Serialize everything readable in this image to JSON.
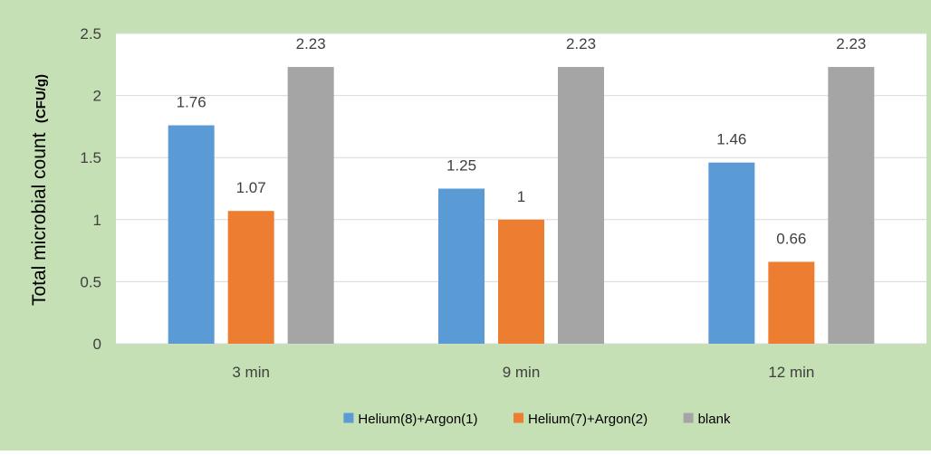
{
  "chart_data": {
    "type": "bar",
    "ylabel": "Total microbial count",
    "ylabel_unit": "(CFU/g)",
    "categories": [
      "3 min",
      "9 min",
      "12 min"
    ],
    "ylim": [
      0,
      2.5
    ],
    "y_ticks": [
      "0",
      "0.5",
      "1",
      "1.5",
      "2",
      "2.5"
    ],
    "grid": true,
    "legend_position": "bottom",
    "series": [
      {
        "name": "Helium(8)+Argon(1)",
        "color": "#5B9BD5",
        "values": [
          1.76,
          1.25,
          1.46
        ],
        "labels": [
          "1.76",
          "1.25",
          "1.46"
        ]
      },
      {
        "name": "Helium(7)+Argon(2)",
        "color": "#ED7D31",
        "values": [
          1.07,
          1,
          0.66
        ],
        "labels": [
          "1.07",
          "1",
          "0.66"
        ]
      },
      {
        "name": "blank",
        "color": "#A5A5A5",
        "values": [
          2.23,
          2.23,
          2.23
        ],
        "labels": [
          "2.23",
          "2.23",
          "2.23"
        ]
      }
    ],
    "colors": {
      "outer_background": "#C5E0B4",
      "plot_background": "#FFFFFF",
      "gridline": "#D9D9D9",
      "text": "#404040"
    }
  }
}
